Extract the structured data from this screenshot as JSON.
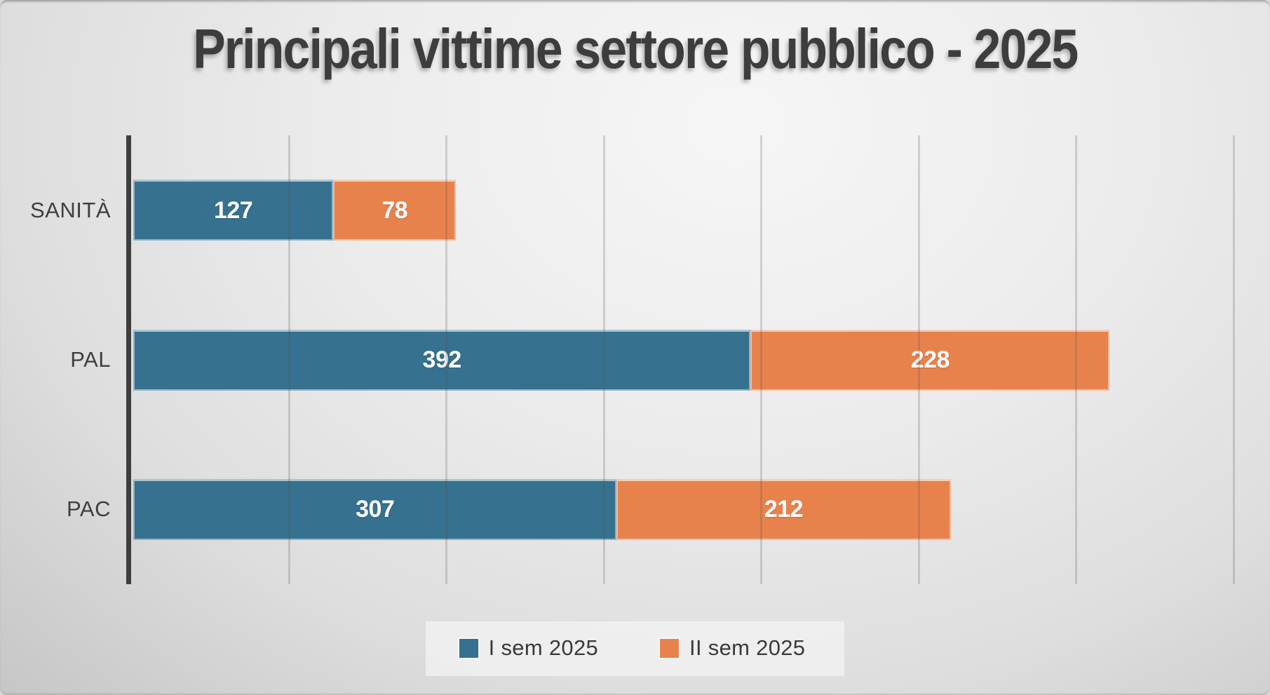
{
  "title": "Principali vittime settore pubblico - 2025",
  "chart_data": {
    "type": "bar",
    "orientation": "horizontal",
    "stacked": true,
    "title": "Principali vittime settore pubblico - 2025",
    "categories": [
      "SANITÀ",
      "PAL",
      "PAC"
    ],
    "series": [
      {
        "name": "I sem 2025",
        "color": "#36718f",
        "values": [
          127,
          392,
          307
        ]
      },
      {
        "name": "II sem 2025",
        "color": "#e8824d",
        "values": [
          78,
          228,
          212
        ]
      }
    ],
    "totals": [
      205,
      620,
      519
    ],
    "xlabel": "",
    "ylabel": "",
    "xlim": [
      0,
      700
    ],
    "gridline_interval": 100,
    "grid": true,
    "axis_tick_labels_visible": false,
    "value_labels": "inside-center",
    "legend_position": "bottom"
  }
}
